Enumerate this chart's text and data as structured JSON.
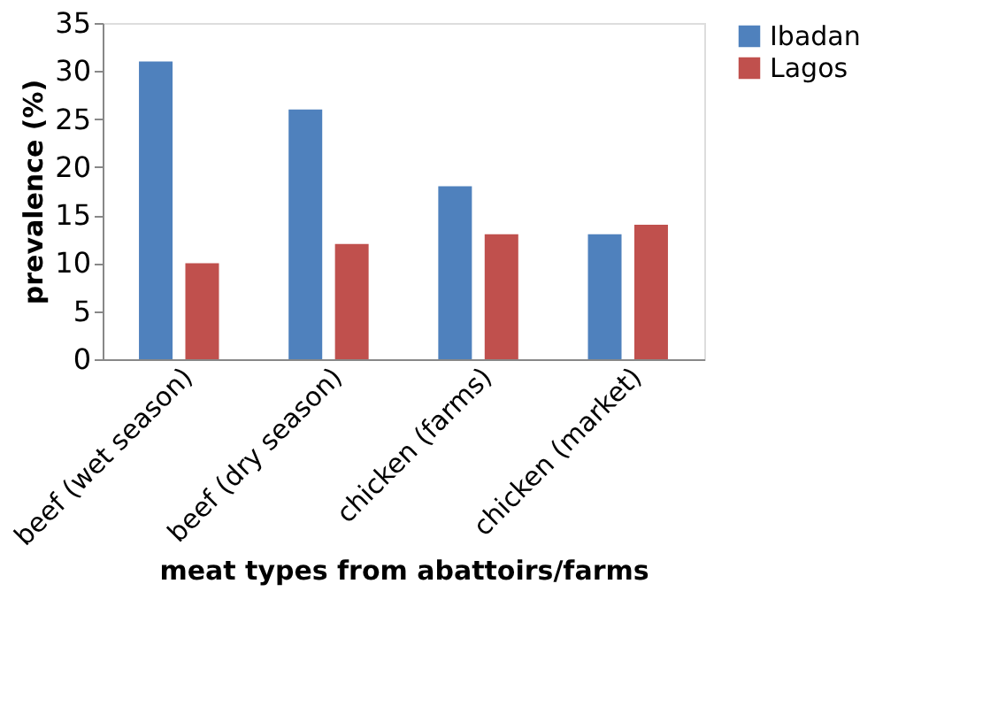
{
  "chart_data": {
    "type": "bar",
    "xlabel": "meat types from abattoirs/farms",
    "ylabel": "prevalence (%)",
    "categories": [
      "beef (wet season)",
      "beef (dry season)",
      "chicken (farms)",
      "chicken (market)"
    ],
    "series": [
      {
        "name": "Ibadan",
        "color": "#4f81bd",
        "values": [
          31,
          26,
          18,
          13
        ]
      },
      {
        "name": "Lagos",
        "color": "#c0504d",
        "values": [
          10,
          12,
          13,
          14
        ]
      }
    ],
    "ylim": [
      0,
      35
    ],
    "yticks": [
      0,
      5,
      10,
      15,
      20,
      25,
      30,
      35
    ],
    "grid": false,
    "legend": "right"
  }
}
